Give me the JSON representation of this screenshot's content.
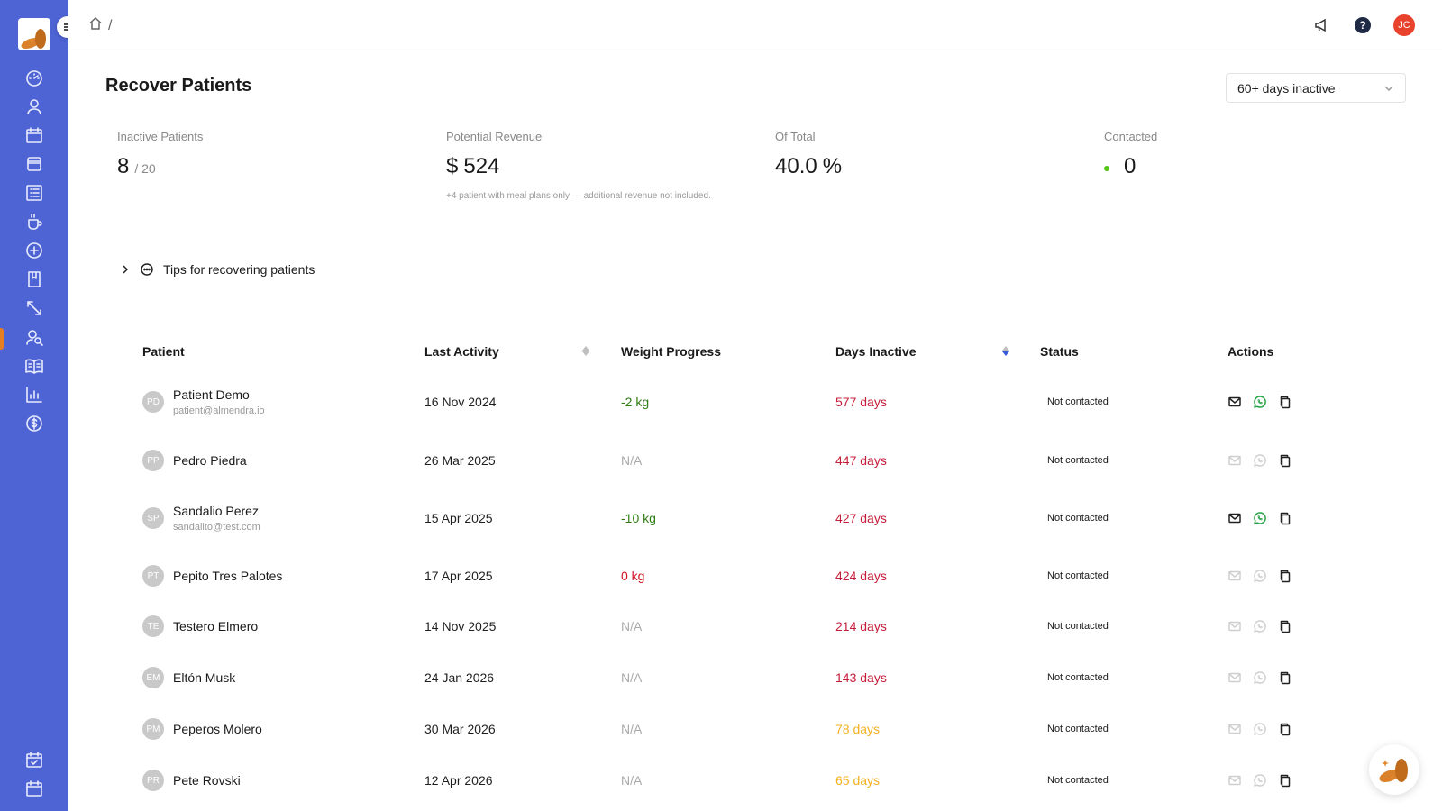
{
  "sidebar": {
    "items": [
      {
        "icon": "dashboard-icon"
      },
      {
        "icon": "user-icon"
      },
      {
        "icon": "calendar-icon"
      },
      {
        "icon": "layout-icon"
      },
      {
        "icon": "list-icon"
      },
      {
        "icon": "cup-icon"
      },
      {
        "icon": "plus-circle-icon"
      },
      {
        "icon": "book-icon"
      },
      {
        "icon": "arrows-icon"
      },
      {
        "icon": "users-search-icon"
      },
      {
        "icon": "reading-icon"
      },
      {
        "icon": "bar-chart-icon"
      },
      {
        "icon": "dollar-icon"
      }
    ],
    "bottom_items": [
      {
        "icon": "calendar-check-icon"
      },
      {
        "icon": "calendar-icon"
      }
    ],
    "accent": "#4f64d4",
    "active_marker_color": "#e67e22"
  },
  "topbar": {
    "breadcrumb_separator": "/",
    "avatar_initials": "JC",
    "help_label": "?"
  },
  "page": {
    "title": "Recover Patients",
    "filter": {
      "selected": "60+ days inactive"
    }
  },
  "stats": {
    "inactive": {
      "label": "Inactive Patients",
      "value": "8",
      "sub": "/ 20"
    },
    "revenue": {
      "label": "Potential Revenue",
      "currency": "$",
      "value": "524",
      "note": "+4 patient with meal plans only — additional revenue not included."
    },
    "of_total": {
      "label": "Of Total",
      "value": "40.0",
      "unit": "%"
    },
    "contacted": {
      "label": "Contacted",
      "value": "0"
    }
  },
  "tips": {
    "label": "Tips for recovering patients"
  },
  "table": {
    "headers": {
      "patient": "Patient",
      "last_activity": "Last Activity",
      "weight": "Weight Progress",
      "days": "Days Inactive",
      "status": "Status",
      "actions": "Actions"
    },
    "rows": [
      {
        "initials": "PD",
        "name": "Patient Demo",
        "email": "patient@almendra.io",
        "last": "16 Nov 2024",
        "weight": "-2 kg",
        "weight_type": "neg",
        "days": "577 days",
        "days_type": "red",
        "status": "Not contacted",
        "contact_enabled": true
      },
      {
        "initials": "PP",
        "name": "Pedro Piedra",
        "email": "",
        "last": "26 Mar 2025",
        "weight": "N/A",
        "weight_type": "na",
        "days": "447 days",
        "days_type": "red",
        "status": "Not contacted",
        "contact_enabled": false
      },
      {
        "initials": "SP",
        "name": "Sandalio Perez",
        "email": "sandalito@test.com",
        "last": "15 Apr 2025",
        "weight": "-10 kg",
        "weight_type": "neg",
        "days": "427 days",
        "days_type": "red",
        "status": "Not contacted",
        "contact_enabled": true
      },
      {
        "initials": "PT",
        "name": "Pepito Tres Palotes",
        "email": "",
        "last": "17 Apr 2025",
        "weight": "0 kg",
        "weight_type": "zero",
        "days": "424 days",
        "days_type": "red",
        "status": "Not contacted",
        "contact_enabled": false
      },
      {
        "initials": "TE",
        "name": "Testero Elmero",
        "email": "",
        "last": "14 Nov 2025",
        "weight": "N/A",
        "weight_type": "na",
        "days": "214 days",
        "days_type": "red",
        "status": "Not contacted",
        "contact_enabled": false
      },
      {
        "initials": "EM",
        "name": "Eltón Musk",
        "email": "",
        "last": "24 Jan 2026",
        "weight": "N/A",
        "weight_type": "na",
        "days": "143 days",
        "days_type": "red",
        "status": "Not contacted",
        "contact_enabled": false
      },
      {
        "initials": "PM",
        "name": "Peperos Molero",
        "email": "",
        "last": "30 Mar 2026",
        "weight": "N/A",
        "weight_type": "na",
        "days": "78 days",
        "days_type": "orange",
        "status": "Not contacted",
        "contact_enabled": false
      },
      {
        "initials": "PR",
        "name": "Pete Rovski",
        "email": "",
        "last": "12 Apr 2026",
        "weight": "N/A",
        "weight_type": "na",
        "days": "65 days",
        "days_type": "orange",
        "status": "Not contacted",
        "contact_enabled": false
      }
    ]
  }
}
